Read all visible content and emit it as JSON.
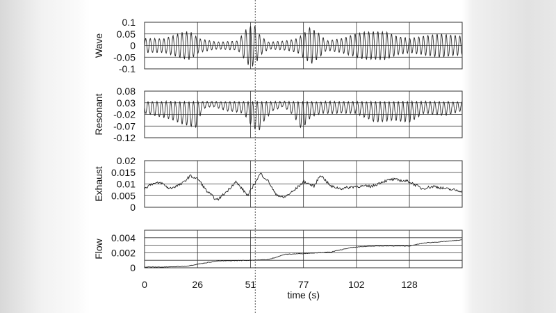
{
  "chart_data": [
    {
      "type": "line",
      "ylabel": "Wave",
      "ylim": [
        -0.1,
        0.1
      ],
      "yticks": [
        "0.1",
        "0.05",
        "0",
        "-0.05",
        "-0.1"
      ],
      "ytick_values": [
        0.1,
        0.05,
        0,
        -0.05,
        -0.1
      ],
      "model": "oscillation",
      "period_s": 2.2,
      "envelope_t": [
        0,
        10,
        18,
        22,
        26,
        35,
        45,
        50,
        53,
        56,
        60,
        68,
        74,
        78,
        80,
        84,
        88,
        95,
        102,
        108,
        116,
        122,
        128,
        135,
        142,
        153
      ],
      "envelope_amp": [
        0.03,
        0.03,
        0.055,
        0.06,
        0.03,
        0.015,
        0.02,
        0.08,
        0.09,
        0.04,
        0.015,
        0.02,
        0.03,
        0.06,
        0.08,
        0.055,
        0.02,
        0.03,
        0.05,
        0.06,
        0.06,
        0.04,
        0.03,
        0.04,
        0.05,
        0.04
      ]
    },
    {
      "type": "line",
      "ylabel": "Resonant",
      "ylim": [
        -0.12,
        0.08
      ],
      "yticks": [
        "0.08",
        "0.03",
        "-0.02",
        "-0.07",
        "-0.12"
      ],
      "ytick_values": [
        0.08,
        0.03,
        -0.02,
        -0.07,
        -0.12
      ],
      "model": "oscillation-downward",
      "top_value": 0.035,
      "period_s": 2.2,
      "envelope_t": [
        0,
        10,
        20,
        25,
        28,
        33,
        40,
        48,
        52,
        55,
        58,
        62,
        67,
        72,
        76,
        80,
        85,
        95,
        102,
        112,
        120,
        128,
        135,
        145,
        153
      ],
      "envelope_amp": [
        0.05,
        0.07,
        0.1,
        0.11,
        0.03,
        0.02,
        0.04,
        0.05,
        0.11,
        0.13,
        0.08,
        0.04,
        0.02,
        0.06,
        0.12,
        0.07,
        0.05,
        0.05,
        0.05,
        0.09,
        0.08,
        0.09,
        0.05,
        0.06,
        0.04
      ]
    },
    {
      "type": "line",
      "ylabel": "Exhaust",
      "ylim": [
        0,
        0.02
      ],
      "yticks": [
        "0.02",
        "0.015",
        "0.01",
        "0.005",
        "0"
      ],
      "ytick_values": [
        0.02,
        0.015,
        0.01,
        0.005,
        0
      ],
      "x": [
        0,
        3,
        8,
        12,
        18,
        22,
        26,
        30,
        35,
        40,
        44,
        48,
        50,
        53,
        56,
        60,
        63,
        67,
        72,
        77,
        82,
        85,
        90,
        95,
        102,
        110,
        115,
        120,
        128,
        134,
        140,
        145,
        153
      ],
      "y": [
        0.008,
        0.01,
        0.0105,
        0.008,
        0.01,
        0.0135,
        0.012,
        0.007,
        0.003,
        0.007,
        0.011,
        0.007,
        0.005,
        0.01,
        0.0145,
        0.011,
        0.006,
        0.004,
        0.007,
        0.011,
        0.009,
        0.014,
        0.009,
        0.008,
        0.009,
        0.009,
        0.011,
        0.012,
        0.011,
        0.008,
        0.009,
        0.008,
        0.007
      ]
    },
    {
      "type": "line",
      "ylabel": "Flow",
      "ylim": [
        0,
        0.005
      ],
      "yticks": [
        "0.004",
        "0.002",
        "0"
      ],
      "ytick_values": [
        0.004,
        0.002,
        0
      ],
      "grid_values": [
        0.001,
        0.002,
        0.003,
        0.004
      ],
      "x": [
        0,
        10,
        20,
        26,
        35,
        51,
        60,
        68,
        77,
        90,
        100,
        110,
        128,
        135,
        145,
        153
      ],
      "y": [
        0.0001,
        0.0001,
        0.0002,
        0.0005,
        0.0009,
        0.001,
        0.0011,
        0.0018,
        0.0019,
        0.0021,
        0.0027,
        0.0029,
        0.0029,
        0.0033,
        0.0035,
        0.0037
      ]
    }
  ],
  "x_axis": {
    "label": "time (s)",
    "xlim": [
      0,
      153.5
    ],
    "ticks": [
      "0",
      "26",
      "51",
      "77",
      "102",
      "128"
    ],
    "tick_values": [
      0,
      25.6,
      51.2,
      76.8,
      102.4,
      128
    ]
  },
  "cursor": {
    "x": 53.5,
    "style": "dotted"
  }
}
